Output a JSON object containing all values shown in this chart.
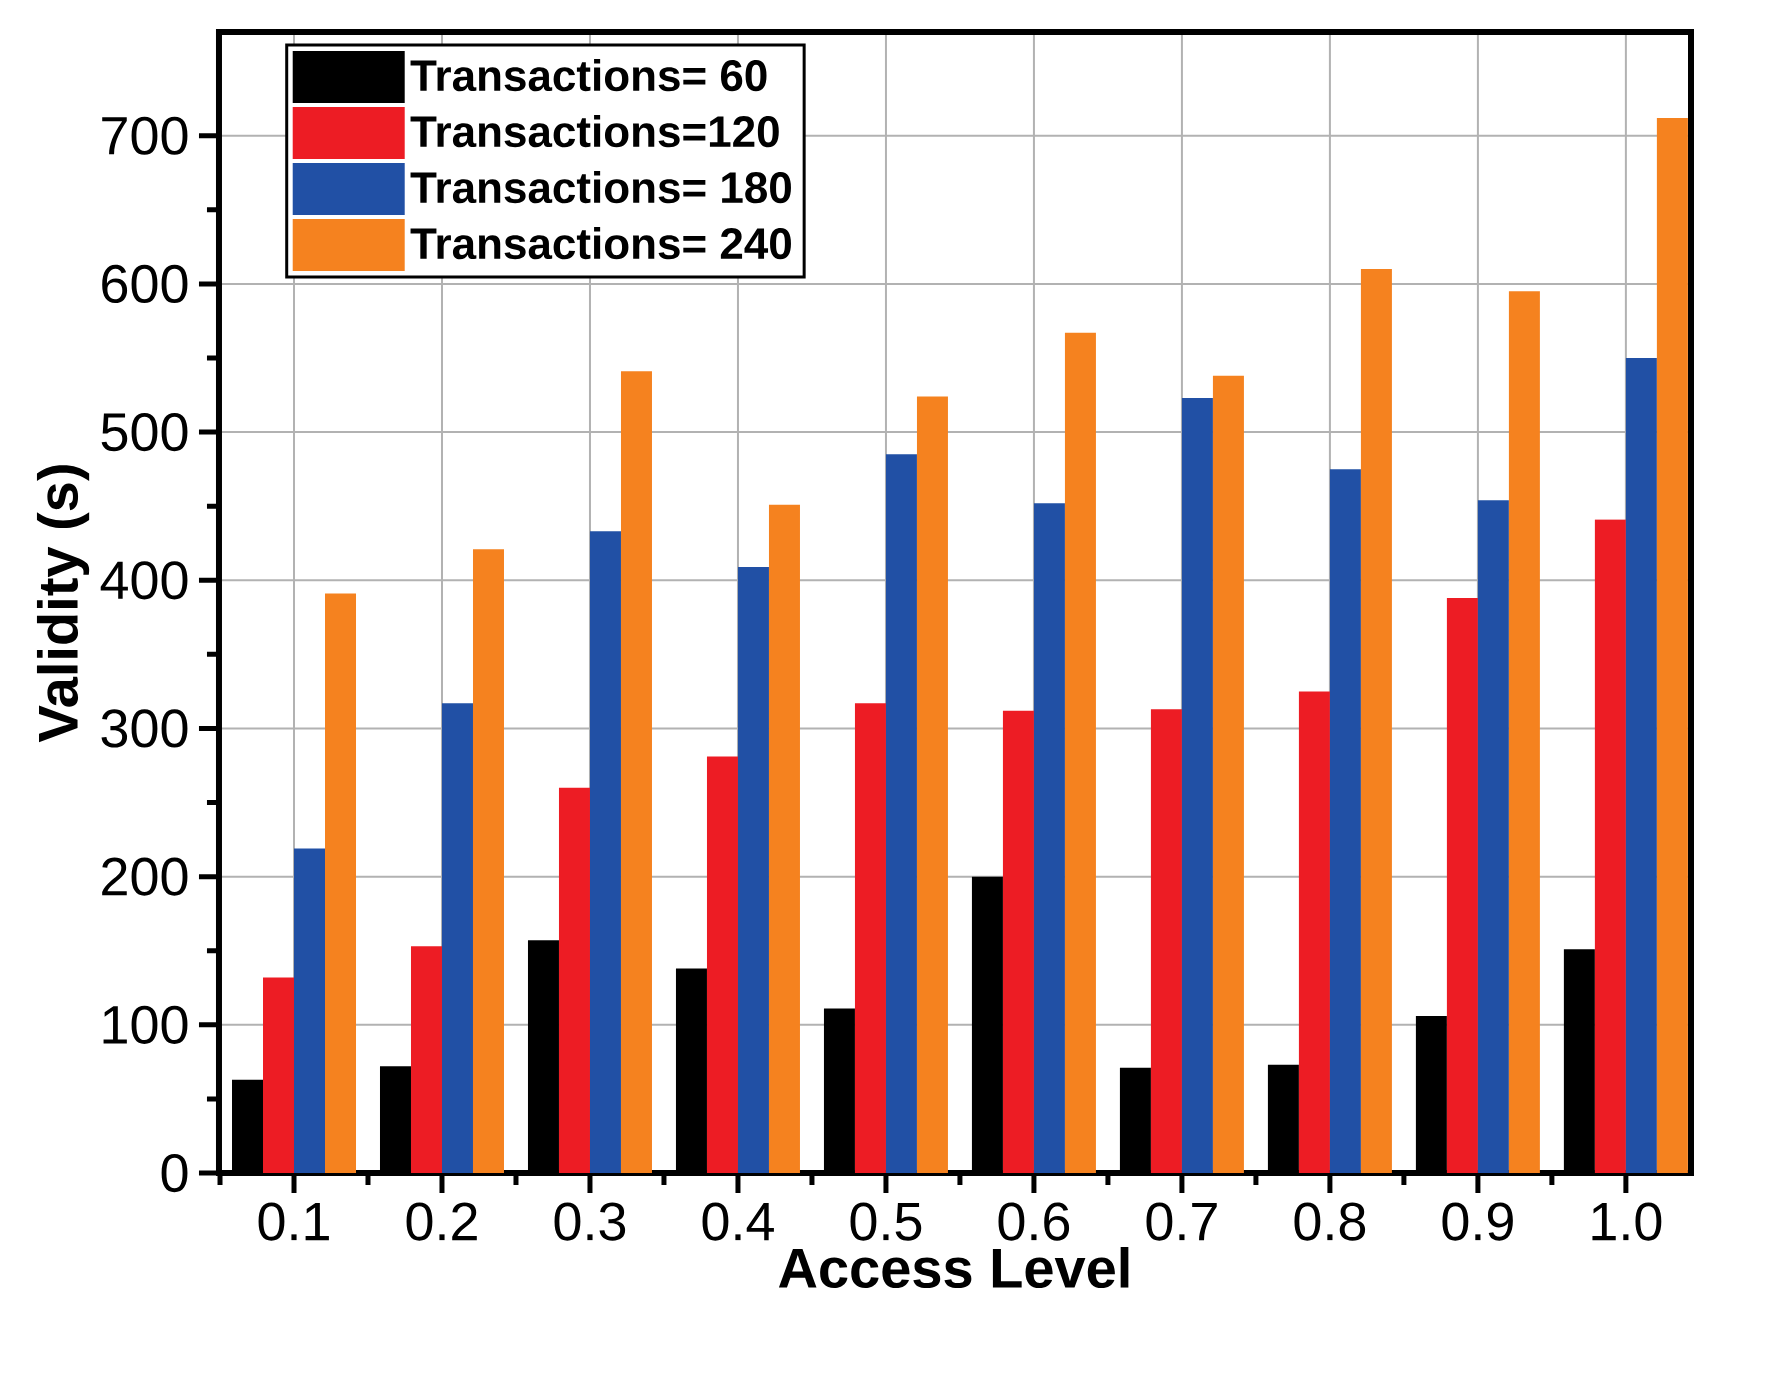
{
  "chart_data": {
    "type": "bar",
    "xlabel": "Access Level",
    "ylabel": "Validity (s)",
    "categories": [
      "0.1",
      "0.2",
      "0.3",
      "0.4",
      "0.5",
      "0.6",
      "0.7",
      "0.8",
      "0.9",
      "1.0"
    ],
    "series": [
      {
        "name": "Transactions= 60",
        "color": "#000000",
        "values": [
          63,
          72,
          157,
          138,
          111,
          200,
          71,
          73,
          106,
          151
        ]
      },
      {
        "name": "Transactions=120",
        "color": "#ed1c24",
        "values": [
          132,
          153,
          260,
          281,
          317,
          312,
          313,
          325,
          388,
          441
        ]
      },
      {
        "name": "Transactions= 180",
        "color": "#2150a5",
        "values": [
          219,
          317,
          433,
          409,
          485,
          452,
          523,
          475,
          454,
          550
        ]
      },
      {
        "name": "Transactions= 240",
        "color": "#f5821f",
        "values": [
          391,
          421,
          541,
          451,
          524,
          567,
          538,
          610,
          595,
          712
        ]
      }
    ],
    "ylim": [
      0,
      770
    ],
    "yticks": [
      0,
      100,
      200,
      300,
      400,
      500,
      600,
      700
    ],
    "grid": true,
    "legend": "top left"
  }
}
